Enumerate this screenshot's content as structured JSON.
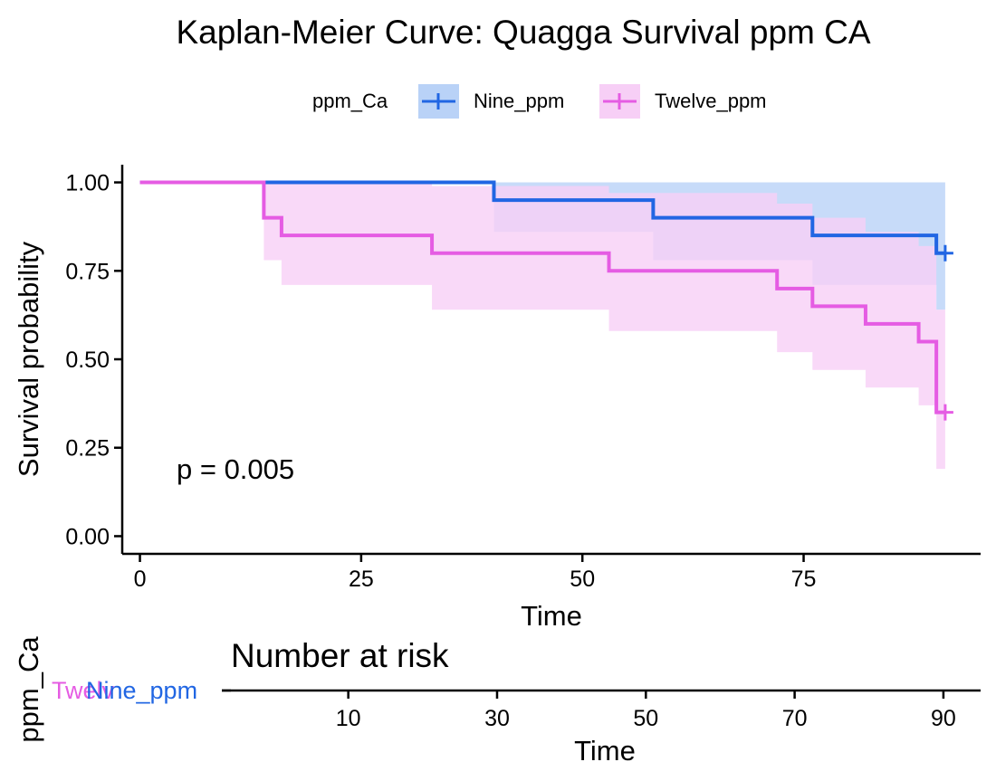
{
  "chart_data": [
    {
      "type": "line",
      "subtype": "step",
      "title": "Kaplan-Meier Curve: Quagga Survival ppm CA",
      "xlabel": "Time",
      "ylabel": "Survival probability",
      "xlim": [
        -2,
        95
      ],
      "ylim": [
        -0.05,
        1.05
      ],
      "xticks": [
        0,
        25,
        50,
        75
      ],
      "yticks": [
        0.0,
        0.25,
        0.5,
        0.75,
        1.0
      ],
      "xtick_labels": [
        "0",
        "25",
        "50",
        "75"
      ],
      "ytick_labels": [
        "0.00",
        "0.25",
        "0.50",
        "0.75",
        "1.00"
      ],
      "grid": false,
      "legend": {
        "title": "ppm_Ca",
        "position": "top"
      },
      "annotation": "p = 0.005",
      "series": [
        {
          "name": "Nine_ppm",
          "color": "#2166e3",
          "band_color": "#b9d2f7",
          "steps": [
            {
              "x": 0,
              "y": 1.0,
              "lower": 1.0,
              "upper": 1.0
            },
            {
              "x": 40,
              "y": 0.95,
              "lower": 0.86,
              "upper": 1.0
            },
            {
              "x": 58,
              "y": 0.9,
              "lower": 0.78,
              "upper": 1.0
            },
            {
              "x": 76,
              "y": 0.85,
              "lower": 0.71,
              "upper": 1.0
            },
            {
              "x": 90,
              "y": 0.8,
              "lower": 0.64,
              "upper": 1.0
            }
          ],
          "end_x": 91,
          "censor": [
            {
              "x": 91,
              "y": 0.8
            }
          ]
        },
        {
          "name": "Twelve_ppm",
          "color": "#e55ce3",
          "band_color": "#f7cff6",
          "steps": [
            {
              "x": 0,
              "y": 1.0,
              "lower": 1.0,
              "upper": 1.0
            },
            {
              "x": 14,
              "y": 0.9,
              "lower": 0.78,
              "upper": 1.0
            },
            {
              "x": 16,
              "y": 0.85,
              "lower": 0.71,
              "upper": 1.0
            },
            {
              "x": 33,
              "y": 0.8,
              "lower": 0.64,
              "upper": 0.99
            },
            {
              "x": 53,
              "y": 0.75,
              "lower": 0.58,
              "upper": 0.97
            },
            {
              "x": 72,
              "y": 0.7,
              "lower": 0.52,
              "upper": 0.94
            },
            {
              "x": 76,
              "y": 0.65,
              "lower": 0.47,
              "upper": 0.9
            },
            {
              "x": 82,
              "y": 0.6,
              "lower": 0.42,
              "upper": 0.86
            },
            {
              "x": 88,
              "y": 0.55,
              "lower": 0.37,
              "upper": 0.82
            },
            {
              "x": 90,
              "y": 0.35,
              "lower": 0.19,
              "upper": 0.64
            }
          ],
          "end_x": 91,
          "censor": [
            {
              "x": 91,
              "y": 0.35
            }
          ]
        }
      ]
    },
    {
      "type": "table",
      "title": "Number at risk",
      "xlabel": "Time",
      "ylabel": "ppm_Ca",
      "xlim": [
        -7,
        95
      ],
      "xticks": [
        10,
        30,
        50,
        70,
        90
      ],
      "xtick_labels": [
        "10",
        "30",
        "50",
        "70",
        "90"
      ],
      "strata": [
        {
          "name": "Nine_ppm",
          "color": "#2166e3"
        },
        {
          "name": "Twelve_ppm",
          "color": "#e55ce3",
          "shown_text": "Twelv"
        }
      ]
    }
  ]
}
